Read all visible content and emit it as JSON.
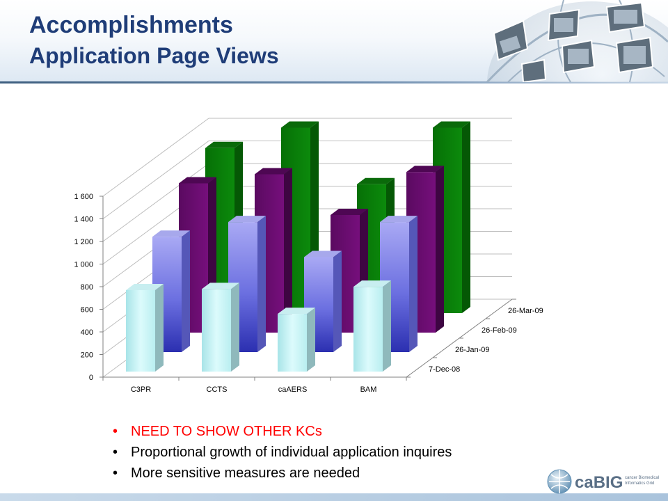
{
  "header": {
    "title": "Accomplishments",
    "subtitle": "Application Page Views"
  },
  "bullets": [
    {
      "text": "NEED TO SHOW OTHER KCs",
      "alert": true
    },
    {
      "text": "Proportional growth of individual application inquires",
      "alert": false
    },
    {
      "text": "More sensitive measures are needed",
      "alert": false
    }
  ],
  "logo": {
    "name": "caBIG",
    "tagline": "cancer Biomedical Informatics Grid"
  },
  "colors": {
    "title": "#1f3d78",
    "alert": "#ff0000",
    "series": [
      "#bff2f4",
      "#8a8ff0",
      "#6a0f6f",
      "#0b7d0b"
    ]
  },
  "chart_data": {
    "type": "bar",
    "style": "3d-column",
    "categories": [
      "C3PR",
      "CCTS",
      "caAERS",
      "BAM"
    ],
    "series": [
      {
        "name": "7-Dec-08",
        "values": [
          720,
          730,
          510,
          750
        ]
      },
      {
        "name": "26-Jan-09",
        "values": [
          1020,
          1150,
          840,
          1150
        ]
      },
      {
        "name": "26-Feb-09",
        "values": [
          1320,
          1400,
          1040,
          1420
        ]
      },
      {
        "name": "26-Mar-09",
        "values": [
          1460,
          1640,
          1140,
          1640
        ]
      }
    ],
    "yticks": [
      0,
      200,
      400,
      600,
      800,
      1000,
      1200,
      1400,
      1600
    ],
    "ytick_labels": [
      "0",
      "200",
      "400",
      "600",
      "800",
      "1 000",
      "1 200",
      "1 400",
      "1 600"
    ],
    "ylim": [
      0,
      1600
    ],
    "grid": true,
    "legend": "depth-axis-right"
  }
}
